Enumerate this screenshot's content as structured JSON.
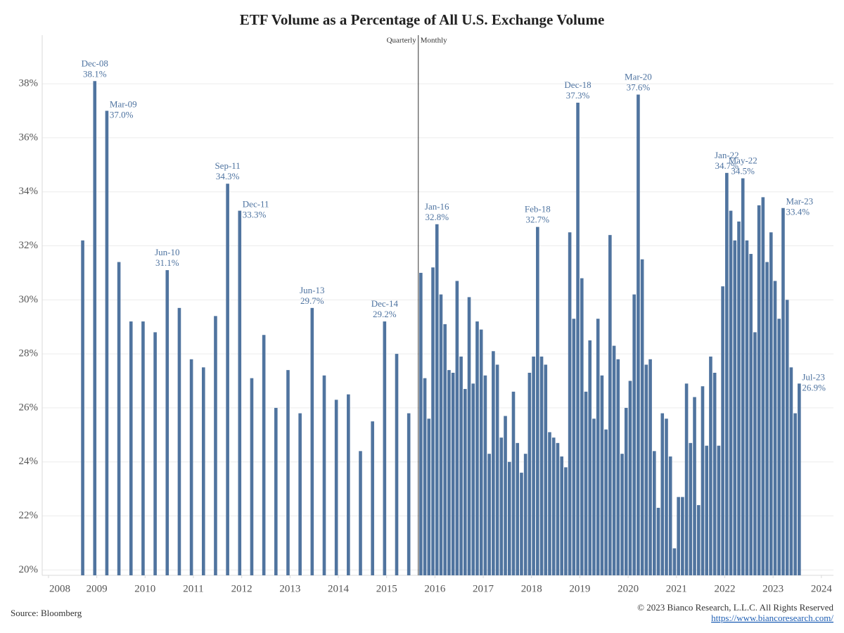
{
  "chart_data": {
    "type": "bar",
    "title": "ETF Volume as a Percentage of All U.S. Exchange Volume",
    "source": "Source: Bloomberg",
    "copyright": "© 2023 Bianco Research, L.L.C. All Rights Reserved",
    "url": "https://www.biancoresearch.com/",
    "xlim": [
      2007.87,
      2024.25
    ],
    "xticks": [
      2008,
      2009,
      2010,
      2011,
      2012,
      2013,
      2014,
      2015,
      2016,
      2017,
      2018,
      2019,
      2020,
      2021,
      2022,
      2023,
      2024
    ],
    "ylim": [
      19.8,
      39.8
    ],
    "yticks": [
      {
        "value": 20,
        "label": "20%"
      },
      {
        "value": 22,
        "label": "22%"
      },
      {
        "value": 24,
        "label": "24%"
      },
      {
        "value": 26,
        "label": "26%"
      },
      {
        "value": 28,
        "label": "28%"
      },
      {
        "value": 30,
        "label": "30%"
      },
      {
        "value": 32,
        "label": "32%"
      },
      {
        "value": 34,
        "label": "34%"
      },
      {
        "value": 36,
        "label": "36%"
      },
      {
        "value": 38,
        "label": "38%"
      }
    ],
    "grid": true,
    "series": [
      {
        "name": "Quarterly",
        "color": "#50749f",
        "x": [
          "2008-09",
          "2008-12",
          "2009-03",
          "2009-06",
          "2009-09",
          "2009-12",
          "2010-03",
          "2010-06",
          "2010-09",
          "2010-12",
          "2011-03",
          "2011-06",
          "2011-09",
          "2011-12",
          "2012-03",
          "2012-06",
          "2012-09",
          "2012-12",
          "2013-03",
          "2013-06",
          "2013-09",
          "2013-12",
          "2014-03",
          "2014-06",
          "2014-09",
          "2014-12",
          "2015-03",
          "2015-06"
        ],
        "values": [
          32.2,
          38.1,
          37.0,
          31.4,
          29.2,
          29.2,
          28.8,
          31.1,
          29.7,
          27.8,
          27.5,
          29.4,
          34.3,
          33.3,
          27.1,
          28.7,
          26.0,
          27.4,
          25.8,
          29.7,
          27.2,
          26.3,
          26.5,
          24.4,
          25.5,
          29.2,
          28.0,
          25.8
        ],
        "point_labels": [
          null,
          "Dec-08",
          "Mar-09",
          null,
          null,
          null,
          null,
          "Jun-10",
          null,
          null,
          null,
          null,
          "Sep-11",
          "Dec-11",
          null,
          null,
          null,
          null,
          null,
          "Jun-13",
          null,
          null,
          null,
          null,
          null,
          "Dec-14",
          null,
          null
        ],
        "value_labels": [
          null,
          "38.1%",
          "37.0%",
          null,
          null,
          null,
          null,
          "31.1%",
          null,
          null,
          null,
          null,
          "34.3%",
          "33.3%",
          null,
          null,
          null,
          null,
          null,
          "29.7%",
          null,
          null,
          null,
          null,
          null,
          "29.2%",
          null,
          null
        ]
      },
      {
        "name": "Monthly",
        "color": "#50749f",
        "x": [
          "2015-09",
          "2015-10",
          "2015-11",
          "2015-12",
          "2016-01",
          "2016-02",
          "2016-03",
          "2016-04",
          "2016-05",
          "2016-06",
          "2016-07",
          "2016-08",
          "2016-09",
          "2016-10",
          "2016-11",
          "2016-12",
          "2017-01",
          "2017-02",
          "2017-03",
          "2017-04",
          "2017-05",
          "2017-06",
          "2017-07",
          "2017-08",
          "2017-09",
          "2017-10",
          "2017-11",
          "2017-12",
          "2018-01",
          "2018-02",
          "2018-03",
          "2018-04",
          "2018-05",
          "2018-06",
          "2018-07",
          "2018-08",
          "2018-09",
          "2018-10",
          "2018-11",
          "2018-12",
          "2019-01",
          "2019-02",
          "2019-03",
          "2019-04",
          "2019-05",
          "2019-06",
          "2019-07",
          "2019-08",
          "2019-09",
          "2019-10",
          "2019-11",
          "2019-12",
          "2020-01",
          "2020-02",
          "2020-03",
          "2020-04",
          "2020-05",
          "2020-06",
          "2020-07",
          "2020-08",
          "2020-09",
          "2020-10",
          "2020-11",
          "2020-12",
          "2021-01",
          "2021-02",
          "2021-03",
          "2021-04",
          "2021-05",
          "2021-06",
          "2021-07",
          "2021-08",
          "2021-09",
          "2021-10",
          "2021-11",
          "2021-12",
          "2022-01",
          "2022-02",
          "2022-03",
          "2022-04",
          "2022-05",
          "2022-06",
          "2022-07",
          "2022-08",
          "2022-09",
          "2022-10",
          "2022-11",
          "2022-12",
          "2023-01",
          "2023-02",
          "2023-03",
          "2023-04",
          "2023-05",
          "2023-06",
          "2023-07"
        ],
        "values": [
          31.0,
          27.1,
          25.6,
          31.2,
          32.8,
          30.2,
          29.1,
          27.4,
          27.3,
          30.7,
          27.9,
          26.7,
          30.1,
          26.9,
          29.2,
          28.9,
          27.2,
          24.3,
          28.1,
          27.6,
          24.9,
          25.7,
          24.0,
          26.6,
          24.7,
          23.6,
          24.3,
          27.3,
          27.9,
          32.7,
          27.9,
          27.6,
          25.1,
          24.9,
          24.7,
          24.2,
          23.8,
          32.5,
          29.3,
          37.3,
          30.8,
          26.6,
          28.5,
          25.6,
          29.3,
          27.2,
          25.2,
          32.4,
          28.3,
          27.8,
          24.3,
          26.0,
          27.0,
          30.2,
          37.6,
          31.5,
          27.6,
          27.8,
          24.4,
          22.3,
          25.8,
          25.6,
          24.2,
          20.8,
          22.7,
          22.7,
          26.9,
          24.7,
          26.4,
          22.4,
          26.8,
          24.6,
          27.9,
          27.3,
          24.6,
          30.5,
          34.7,
          33.3,
          32.2,
          32.9,
          34.5,
          32.2,
          31.7,
          28.8,
          33.5,
          33.8,
          31.4,
          32.5,
          30.7,
          29.3,
          33.4,
          30.0,
          27.5,
          25.8,
          26.9
        ],
        "point_labels": [
          null,
          null,
          null,
          null,
          "Jan-16",
          null,
          null,
          null,
          null,
          null,
          null,
          null,
          null,
          null,
          null,
          null,
          null,
          null,
          null,
          null,
          null,
          null,
          null,
          null,
          null,
          null,
          null,
          null,
          null,
          "Feb-18",
          null,
          null,
          null,
          null,
          null,
          null,
          null,
          null,
          null,
          "Dec-18",
          null,
          null,
          null,
          null,
          null,
          null,
          null,
          null,
          null,
          null,
          null,
          null,
          null,
          null,
          "Mar-20",
          null,
          null,
          null,
          null,
          null,
          null,
          null,
          null,
          null,
          null,
          null,
          null,
          null,
          null,
          null,
          null,
          null,
          null,
          null,
          null,
          null,
          "Jan-22",
          null,
          null,
          null,
          "May-22",
          null,
          null,
          null,
          null,
          null,
          null,
          null,
          null,
          null,
          "Mar-23",
          null,
          null,
          null,
          "Jul-23"
        ],
        "value_labels": [
          null,
          null,
          null,
          null,
          "32.8%",
          null,
          null,
          null,
          null,
          null,
          null,
          null,
          null,
          null,
          null,
          null,
          null,
          null,
          null,
          null,
          null,
          null,
          null,
          null,
          null,
          null,
          null,
          null,
          null,
          "32.7%",
          null,
          null,
          null,
          null,
          null,
          null,
          null,
          null,
          null,
          "37.3%",
          null,
          null,
          null,
          null,
          null,
          null,
          null,
          null,
          null,
          null,
          null,
          null,
          null,
          null,
          "37.6%",
          null,
          null,
          null,
          null,
          null,
          null,
          null,
          null,
          null,
          null,
          null,
          null,
          null,
          null,
          null,
          null,
          null,
          null,
          null,
          null,
          null,
          "34.7%",
          null,
          null,
          null,
          "34.5%",
          null,
          null,
          null,
          null,
          null,
          null,
          null,
          null,
          null,
          "33.4%",
          null,
          null,
          null,
          "26.9%"
        ]
      }
    ]
  }
}
